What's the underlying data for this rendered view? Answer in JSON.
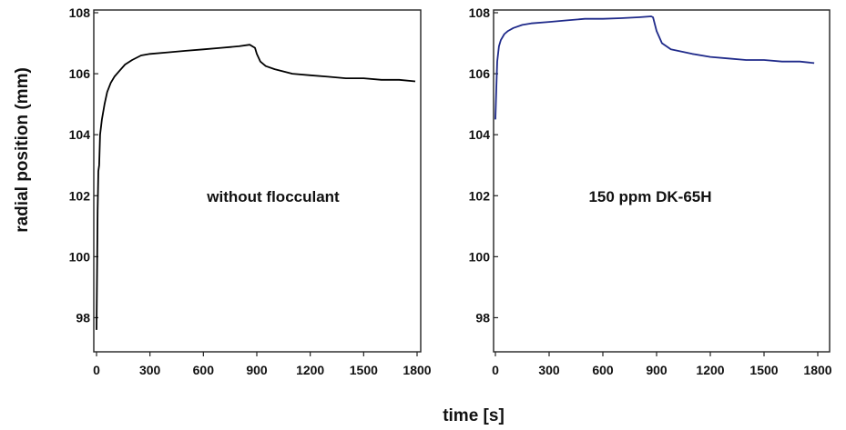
{
  "figure": {
    "ylabel": "radial position (mm)",
    "xlabel": "time [s]"
  },
  "chart_data": [
    {
      "type": "line",
      "annotation": "without flocculant",
      "xlim": [
        0,
        1800
      ],
      "ylim": [
        97,
        108
      ],
      "x_ticks": [
        0,
        300,
        600,
        900,
        1200,
        1500,
        1800
      ],
      "y_ticks": [
        98,
        100,
        102,
        104,
        106,
        108
      ],
      "grid": false,
      "series": [
        {
          "color": "#000000",
          "x": [
            0,
            3,
            6,
            10,
            15,
            20,
            30,
            45,
            60,
            80,
            100,
            130,
            160,
            200,
            250,
            300,
            400,
            500,
            600,
            700,
            800,
            860,
            890,
            900,
            920,
            950,
            1000,
            1100,
            1200,
            1300,
            1400,
            1500,
            1600,
            1700,
            1790
          ],
          "y": [
            97.6,
            99.5,
            101.5,
            102.8,
            103.0,
            104.0,
            104.5,
            105.0,
            105.4,
            105.7,
            105.9,
            106.1,
            106.3,
            106.45,
            106.6,
            106.65,
            106.7,
            106.75,
            106.8,
            106.85,
            106.9,
            106.95,
            106.85,
            106.65,
            106.4,
            106.25,
            106.15,
            106.0,
            105.95,
            105.9,
            105.85,
            105.85,
            105.8,
            105.8,
            105.75
          ]
        }
      ]
    },
    {
      "type": "line",
      "annotation": "150 ppm DK-65H",
      "xlim": [
        0,
        1800
      ],
      "ylim": [
        97,
        108
      ],
      "x_ticks": [
        0,
        300,
        600,
        900,
        1200,
        1500,
        1800
      ],
      "y_ticks": [
        98,
        100,
        102,
        104,
        106,
        108
      ],
      "grid": false,
      "series": [
        {
          "color": "#1f2a8a",
          "x": [
            0,
            5,
            10,
            20,
            30,
            50,
            70,
            100,
            150,
            200,
            300,
            400,
            500,
            600,
            700,
            800,
            870,
            880,
            900,
            930,
            980,
            1100,
            1200,
            1300,
            1400,
            1500,
            1600,
            1700,
            1780
          ],
          "y": [
            104.5,
            105.5,
            106.4,
            106.9,
            107.1,
            107.3,
            107.4,
            107.5,
            107.6,
            107.65,
            107.7,
            107.75,
            107.8,
            107.8,
            107.82,
            107.85,
            107.88,
            107.85,
            107.4,
            107.0,
            106.8,
            106.65,
            106.55,
            106.5,
            106.45,
            106.45,
            106.4,
            106.4,
            106.35
          ]
        }
      ]
    }
  ]
}
